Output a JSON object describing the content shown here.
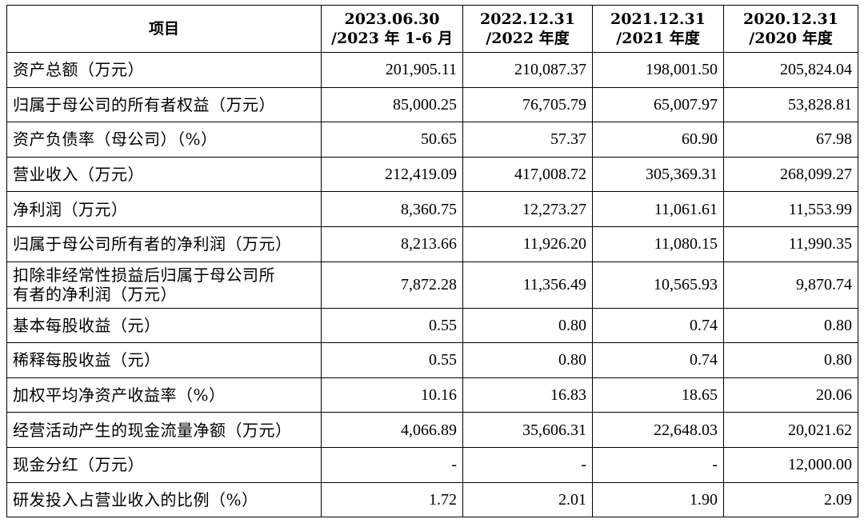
{
  "header": {
    "item": "项目",
    "periods": [
      {
        "line1": "2023.06.30",
        "line2": "/2023 年 1-6 月"
      },
      {
        "line1": "2022.12.31",
        "line2": "/2022 年度"
      },
      {
        "line1": "2021.12.31",
        "line2": "/2021 年度"
      },
      {
        "line1": "2020.12.31",
        "line2": "/2020 年度"
      }
    ]
  },
  "rows": [
    {
      "label": "资产总额（万元）",
      "values": [
        "201,905.11",
        "210,087.37",
        "198,001.50",
        "205,824.04"
      ]
    },
    {
      "label": "归属于母公司的所有者权益（万元）",
      "values": [
        "85,000.25",
        "76,705.79",
        "65,007.97",
        "53,828.81"
      ]
    },
    {
      "label": "资产负债率（母公司）（%）",
      "values": [
        "50.65",
        "57.37",
        "60.90",
        "67.98"
      ]
    },
    {
      "label": "营业收入（万元）",
      "values": [
        "212,419.09",
        "417,008.72",
        "305,369.31",
        "268,099.27"
      ]
    },
    {
      "label": "净利润（万元）",
      "values": [
        "8,360.75",
        "12,273.27",
        "11,061.61",
        "11,553.99"
      ]
    },
    {
      "label": "归属于母公司所有者的净利润（万元）",
      "values": [
        "8,213.66",
        "11,926.20",
        "11,080.15",
        "11,990.35"
      ]
    },
    {
      "label": "扣除非经常性损益后归属于母公司所有者的净利润（万元）",
      "label_line1": "扣除非经常性损益后归属于母公司所",
      "label_line2": "有者的净利润（万元）",
      "values": [
        "7,872.28",
        "11,356.49",
        "10,565.93",
        "9,870.74"
      ]
    },
    {
      "label": "基本每股收益（元）",
      "values": [
        "0.55",
        "0.80",
        "0.74",
        "0.80"
      ]
    },
    {
      "label": "稀释每股收益（元）",
      "values": [
        "0.55",
        "0.80",
        "0.74",
        "0.80"
      ]
    },
    {
      "label": "加权平均净资产收益率（%）",
      "values": [
        "10.16",
        "16.83",
        "18.65",
        "20.06"
      ]
    },
    {
      "label": "经营活动产生的现金流量净额（万元）",
      "values": [
        "4,066.89",
        "35,606.31",
        "22,648.03",
        "20,021.62"
      ]
    },
    {
      "label": "现金分红（万元）",
      "values": [
        "-",
        "-",
        "-",
        "12,000.00"
      ]
    },
    {
      "label": "研发投入占营业收入的比例（%）",
      "values": [
        "1.72",
        "2.01",
        "1.90",
        "2.09"
      ]
    }
  ]
}
